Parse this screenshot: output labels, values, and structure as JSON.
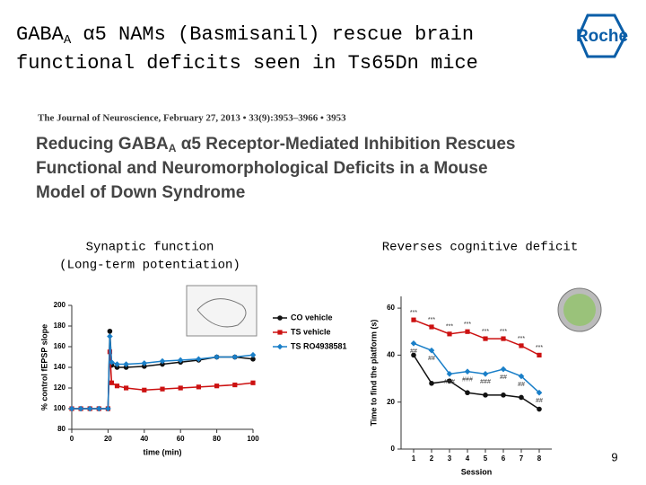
{
  "slide": {
    "title_pre": "GABA",
    "title_sub": "A",
    "title_post": " α5 NAMs (Basmisanil) rescue brain",
    "title_line2": "functional deficits seen in Ts65Dn mice",
    "logo": "Roche",
    "page_number": "9"
  },
  "paper": {
    "journal": "The Journal of Neuroscience, February 27, 2013 • 33(9):3953–3966 • 3953",
    "title_pre": "Reducing GABA",
    "title_sub": "A",
    "title_post": " α5 Receptor-Mediated Inhibition Rescues",
    "title_line2": "Functional and Neuromorphological Deficits in a Mouse",
    "title_line3": "Model of Down Syndrome"
  },
  "captions": {
    "left_line1": "Synaptic function",
    "left_line2": "(Long-term potentiation)",
    "right": "Reverses cognitive deficit"
  },
  "charts": [
    {
      "type": "line",
      "x_label": "time (min)",
      "y_label": "% control fEPSP slope",
      "xlim": [
        0,
        100
      ],
      "xticks": [
        0,
        20,
        40,
        60,
        80,
        100
      ],
      "ylim": [
        80,
        200
      ],
      "yticks": [
        80,
        100,
        120,
        140,
        160,
        180,
        200
      ],
      "x": [
        0,
        5,
        10,
        15,
        20,
        21,
        22,
        25,
        30,
        40,
        50,
        60,
        70,
        80,
        90,
        100
      ],
      "series": [
        {
          "name": "CO vehicle",
          "color": "#111111",
          "values": [
            100,
            100,
            100,
            100,
            100,
            175,
            142,
            140,
            140,
            141,
            143,
            145,
            147,
            150,
            150,
            148
          ]
        },
        {
          "name": "TS vehicle",
          "color": "#cc1111",
          "values": [
            100,
            100,
            100,
            100,
            100,
            155,
            125,
            122,
            120,
            118,
            119,
            120,
            121,
            122,
            123,
            125
          ]
        },
        {
          "name": "TS RO4938581",
          "color": "#1a7fc8",
          "values": [
            100,
            100,
            100,
            100,
            100,
            170,
            145,
            143,
            143,
            144,
            146,
            147,
            148,
            150,
            150,
            152
          ]
        }
      ]
    },
    {
      "type": "line",
      "x_label": "Session",
      "y_label": "Time to find the platform (s)",
      "xlim": [
        0.3,
        8.7
      ],
      "xticks": [
        1,
        2,
        3,
        4,
        5,
        6,
        7,
        8
      ],
      "ylim": [
        0,
        65
      ],
      "yticks": [
        0,
        20,
        40,
        60
      ],
      "x": [
        1,
        2,
        3,
        4,
        5,
        6,
        7,
        8
      ],
      "series": [
        {
          "color": "#111111",
          "values": [
            40,
            28,
            29,
            24,
            23,
            23,
            22,
            17
          ]
        },
        {
          "color": "#cc1111",
          "values": [
            55,
            52,
            49,
            50,
            47,
            47,
            44,
            40
          ],
          "labels": [
            "***",
            "***",
            "***",
            "***",
            "***",
            "***",
            "***",
            "***"
          ]
        },
        {
          "color": "#1a7fc8",
          "values": [
            45,
            42,
            32,
            33,
            32,
            34,
            31,
            24
          ],
          "labels": [
            "##",
            "##",
            "###",
            "###",
            "###",
            "##",
            "##",
            "##"
          ]
        }
      ]
    }
  ]
}
